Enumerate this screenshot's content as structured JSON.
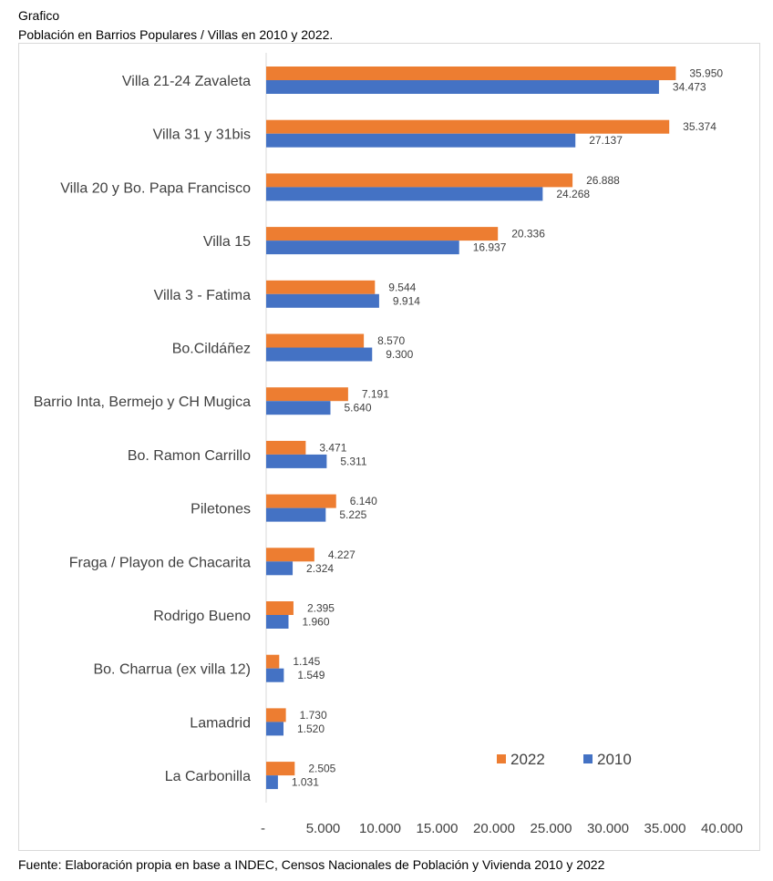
{
  "header": {
    "label": "Grafico",
    "title": "Población en Barrios Populares / Villas en 2010 y 2022."
  },
  "chart_data": {
    "type": "bar",
    "orientation": "horizontal",
    "categories": [
      "Villa 21-24 Zavaleta",
      "Villa 31 y 31bis",
      "Villa 20 y Bo. Papa Francisco",
      "Villa 15",
      "Villa 3 - Fatima",
      "Bo.Cildáñez",
      "Barrio Inta, Bermejo y CH Mugica",
      "Bo. Ramon Carrillo",
      "Piletones",
      "Fraga / Playon de Chacarita",
      "Rodrigo Bueno",
      "Bo. Charrua (ex villa 12)",
      "Lamadrid",
      "La Carbonilla"
    ],
    "series": [
      {
        "name": "2022",
        "color": "#ED7D31",
        "values": [
          35950,
          35374,
          26888,
          20336,
          9544,
          8570,
          7191,
          3471,
          6140,
          4227,
          2395,
          1145,
          1730,
          2505
        ],
        "labels": [
          "35.950",
          "35.374",
          "26.888",
          "20.336",
          "9.544",
          "8.570",
          "7.191",
          "3.471",
          "6.140",
          "4.227",
          "2.395",
          "1.145",
          "1.730",
          "2.505"
        ]
      },
      {
        "name": "2010",
        "color": "#4472C4",
        "values": [
          34473,
          27137,
          24268,
          16937,
          9914,
          9300,
          5640,
          5311,
          5225,
          2324,
          1960,
          1549,
          1520,
          1031
        ],
        "labels": [
          "34.473",
          "27.137",
          "24.268",
          "16.937",
          "9.914",
          "9.300",
          "5.640",
          "5.311",
          "5.225",
          "2.324",
          "1.960",
          "1.549",
          "1.520",
          "1.031"
        ]
      }
    ],
    "xlim": [
      0,
      40000
    ],
    "xticks": [
      0,
      5000,
      10000,
      15000,
      20000,
      25000,
      30000,
      35000,
      40000
    ],
    "xtick_labels": [
      "-",
      "5.000",
      "10.000",
      "15.000",
      "20.000",
      "25.000",
      "30.000",
      "35.000",
      "40.000"
    ],
    "grid": false,
    "legend_position": "bottom-right"
  },
  "footer": {
    "source": "Fuente: Elaboración propia en base a INDEC, Censos Nacionales de Población y Vivienda 2010 y 2022"
  }
}
